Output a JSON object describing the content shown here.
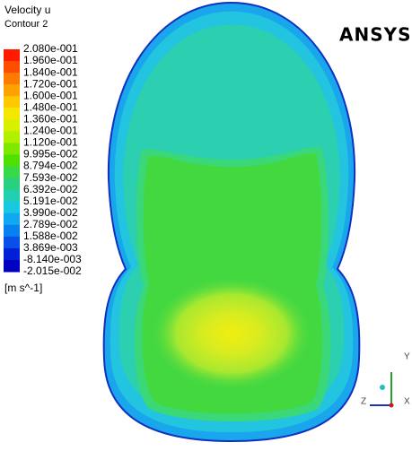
{
  "legend": {
    "title": "Velocity u",
    "subtitle": "Contour 2",
    "levels": [
      "2.080e-001",
      "1.960e-001",
      "1.840e-001",
      "1.720e-001",
      "1.600e-001",
      "1.480e-001",
      "1.360e-001",
      "1.240e-001",
      "1.120e-001",
      "9.995e-002",
      "8.794e-002",
      "7.593e-002",
      "6.392e-002",
      "5.191e-002",
      "3.990e-002",
      "2.789e-002",
      "1.588e-002",
      "3.869e-003",
      "-8.140e-003",
      "-2.015e-002"
    ],
    "colors": [
      "#ff1a00",
      "#ff4d00",
      "#ff7a00",
      "#ffa200",
      "#ffc800",
      "#f5e800",
      "#d8f000",
      "#b0f000",
      "#80e800",
      "#50e000",
      "#38d848",
      "#28d080",
      "#20d0b0",
      "#18c8e0",
      "#10a8f0",
      "#0880f0",
      "#0850e8",
      "#0020d8",
      "#0000c0"
    ],
    "unit": "[m s^-1]"
  },
  "logo": "ANSYS",
  "triad": {
    "y": "Y",
    "z": "Z",
    "x": "X"
  }
}
